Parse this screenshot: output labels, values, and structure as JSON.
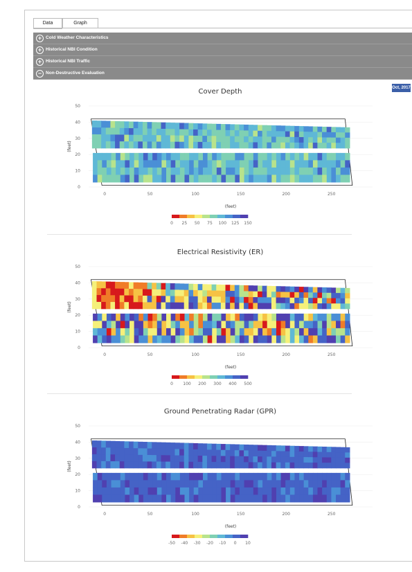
{
  "tabs": [
    {
      "label": "Data"
    },
    {
      "label": "Graph"
    }
  ],
  "accordion": [
    {
      "label": "Cold Weather Characteristics",
      "icon": "plus-circle-icon"
    },
    {
      "label": "Historical NBI Condition",
      "icon": "plus-circle-icon"
    },
    {
      "label": "Historical NBI Traffic",
      "icon": "plus-circle-icon"
    },
    {
      "label": "Non-Destructive Evaluation",
      "icon": "minus-circle-icon"
    }
  ],
  "date_badge": "Oct, 2017",
  "chart_data": [
    {
      "type": "heatmap",
      "title": "Cover Depth",
      "xlabel": "(feet)",
      "ylabel": "(feet)",
      "xticks": [
        0,
        50,
        100,
        150,
        200,
        250
      ],
      "yticks": [
        0,
        10,
        20,
        30,
        40,
        50
      ],
      "xlim": [
        -10,
        280
      ],
      "ylim": [
        0,
        50
      ],
      "colorbar": {
        "ticks": [
          0,
          25,
          50,
          75,
          100,
          125,
          150
        ]
      },
      "palette": "cool"
    },
    {
      "type": "heatmap",
      "title": "Electrical Resistivity (ER)",
      "xlabel": "(feet)",
      "ylabel": "(feet)",
      "xticks": [
        0,
        50,
        100,
        150,
        200,
        250
      ],
      "yticks": [
        0,
        10,
        20,
        30,
        40,
        50
      ],
      "xlim": [
        -10,
        280
      ],
      "ylim": [
        0,
        50
      ],
      "colorbar": {
        "ticks": [
          0,
          100,
          200,
          300,
          400,
          500
        ]
      },
      "palette": "mixed"
    },
    {
      "type": "heatmap",
      "title": "Ground Penetrating Radar (GPR)",
      "xlabel": "(feet)",
      "ylabel": "(feet)",
      "xticks": [
        0,
        50,
        100,
        150,
        200,
        250
      ],
      "yticks": [
        0,
        10,
        20,
        30,
        40,
        50
      ],
      "xlim": [
        -10,
        280
      ],
      "ylim": [
        0,
        50
      ],
      "colorbar": {
        "ticks": [
          -50,
          -40,
          -30,
          -20,
          -10,
          0,
          10
        ]
      },
      "palette": "deep"
    }
  ]
}
